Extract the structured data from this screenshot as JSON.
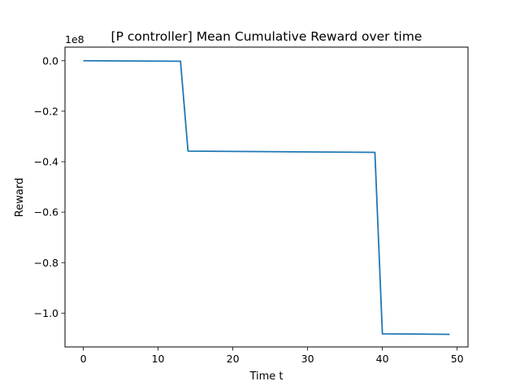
{
  "chart_data": {
    "type": "line",
    "title": "[P controller] Mean Cumulative Reward over time",
    "xlabel": "Time t",
    "ylabel": "Reward",
    "y_offset_label": "1e8",
    "xlim": [
      -2.45,
      51.45
    ],
    "ylim": [
      -1.134,
      0.054
    ],
    "x_ticks": [
      0,
      10,
      20,
      30,
      40,
      50
    ],
    "x_tick_labels": [
      "0",
      "10",
      "20",
      "30",
      "40",
      "50"
    ],
    "y_ticks": [
      0.0,
      -0.2,
      -0.4,
      -0.6,
      -0.8,
      -1.0
    ],
    "y_tick_labels": [
      "0.0",
      "−0.2",
      "−0.4",
      "−0.6",
      "−0.8",
      "−1.0"
    ],
    "grid": false,
    "series": [
      {
        "color": "#1f77b4",
        "x": [
          0,
          13,
          14,
          39,
          40,
          49
        ],
        "y": [
          0.0,
          -0.002,
          -0.358,
          -0.363,
          -1.082,
          -1.084
        ]
      }
    ]
  }
}
